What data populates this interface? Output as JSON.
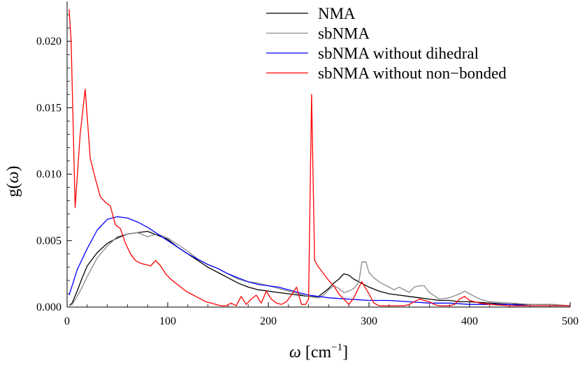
{
  "chart_data": {
    "type": "line",
    "title": "",
    "xlabel": "ω [cm⁻¹]",
    "xlabel_parts": {
      "symbol": "ω",
      "unit_open": "[cm",
      "exponent": "−1",
      "unit_close": "]"
    },
    "ylabel": "g(ω)",
    "ylabel_parts": {
      "prefix": "g(",
      "symbol": "ω",
      "suffix": ")"
    },
    "xlim": [
      0,
      500
    ],
    "ylim": [
      0,
      0.023
    ],
    "xticks": [
      0,
      100,
      200,
      300,
      400,
      500
    ],
    "xtick_labels": [
      "0",
      "100",
      "200",
      "300",
      "400",
      "500"
    ],
    "yticks": [
      0,
      0.005,
      0.01,
      0.015,
      0.02
    ],
    "ytick_labels": [
      "0.000",
      "0.005",
      "0.010",
      "0.015",
      "0.020"
    ],
    "grid": false,
    "legend_position": "top-right",
    "series": [
      {
        "name": "NMA",
        "color": "#000000",
        "x": [
          2,
          5,
          10,
          15,
          20,
          30,
          40,
          50,
          60,
          70,
          80,
          90,
          100,
          110,
          120,
          130,
          140,
          150,
          160,
          170,
          180,
          190,
          200,
          210,
          220,
          230,
          240,
          250,
          255,
          260,
          265,
          270,
          275,
          280,
          285,
          290,
          295,
          300,
          310,
          320,
          330,
          340,
          350,
          360,
          370,
          380,
          390,
          400,
          420,
          440,
          460,
          480,
          500
        ],
        "y": [
          0.0001,
          0.0003,
          0.0012,
          0.0022,
          0.0031,
          0.0041,
          0.0048,
          0.0052,
          0.0055,
          0.0056,
          0.0057,
          0.0054,
          0.0051,
          0.0045,
          0.004,
          0.0035,
          0.003,
          0.0026,
          0.0022,
          0.0018,
          0.0015,
          0.0013,
          0.0012,
          0.0011,
          0.001,
          0.0009,
          0.0008,
          0.0008,
          0.0011,
          0.0014,
          0.0018,
          0.0021,
          0.0025,
          0.0024,
          0.0021,
          0.0019,
          0.0017,
          0.0015,
          0.0012,
          0.001,
          0.0009,
          0.0008,
          0.0007,
          0.0006,
          0.0005,
          0.0005,
          0.0004,
          0.0004,
          0.0003,
          0.0002,
          0.0002,
          0.0002,
          0.0001
        ]
      },
      {
        "name": "sbNMA",
        "color": "#888888",
        "x": [
          2,
          5,
          10,
          15,
          20,
          30,
          40,
          50,
          60,
          70,
          80,
          90,
          100,
          110,
          120,
          130,
          140,
          150,
          160,
          170,
          180,
          190,
          200,
          210,
          220,
          230,
          240,
          250,
          255,
          260,
          265,
          270,
          275,
          280,
          285,
          290,
          293,
          297,
          300,
          305,
          310,
          320,
          325,
          330,
          340,
          345,
          350,
          355,
          360,
          370,
          380,
          390,
          395,
          400,
          410,
          420,
          440,
          460,
          480,
          500
        ],
        "y": [
          0.0001,
          0.0002,
          0.0008,
          0.0015,
          0.0023,
          0.0037,
          0.0046,
          0.0053,
          0.0055,
          0.0056,
          0.0053,
          0.0055,
          0.0052,
          0.0047,
          0.0042,
          0.0036,
          0.0032,
          0.0029,
          0.0025,
          0.0021,
          0.0019,
          0.0018,
          0.0016,
          0.0014,
          0.0012,
          0.001,
          0.0008,
          0.0007,
          0.0009,
          0.0013,
          0.0016,
          0.0014,
          0.0011,
          0.0012,
          0.0014,
          0.0019,
          0.0034,
          0.0034,
          0.0026,
          0.0022,
          0.0019,
          0.0015,
          0.0013,
          0.0015,
          0.0011,
          0.0015,
          0.0016,
          0.0016,
          0.0011,
          0.0006,
          0.0007,
          0.001,
          0.0012,
          0.001,
          0.0006,
          0.0004,
          0.0003,
          0.0002,
          0.0002,
          0.0001
        ]
      },
      {
        "name": "sbNMA without dihedral",
        "color": "#0000ff",
        "x": [
          2,
          10,
          20,
          30,
          40,
          50,
          60,
          70,
          80,
          90,
          100,
          110,
          120,
          130,
          140,
          150,
          160,
          170,
          180,
          190,
          200,
          210,
          220,
          230,
          240,
          250,
          260,
          280,
          300,
          320,
          340,
          360,
          380,
          400,
          420,
          440,
          460,
          480,
          500
        ],
        "y": [
          0.0009,
          0.0028,
          0.0044,
          0.0058,
          0.0066,
          0.0068,
          0.0067,
          0.0064,
          0.006,
          0.0055,
          0.005,
          0.0045,
          0.004,
          0.0036,
          0.0032,
          0.0029,
          0.0025,
          0.0022,
          0.0019,
          0.0017,
          0.0016,
          0.0015,
          0.0013,
          0.0011,
          0.0009,
          0.0008,
          0.0007,
          0.0006,
          0.0005,
          0.0005,
          0.0004,
          0.0003,
          0.0003,
          0.0002,
          0.0002,
          0.0002,
          0.0001,
          0.0001,
          0.0001
        ]
      },
      {
        "name": "sbNMA without non−bonded",
        "color": "#ff0000",
        "x": [
          2,
          4,
          8,
          13,
          18,
          23,
          28,
          33,
          38,
          43,
          48,
          53,
          58,
          63,
          68,
          73,
          78,
          83,
          88,
          93,
          98,
          103,
          108,
          113,
          118,
          123,
          128,
          133,
          138,
          143,
          148,
          153,
          158,
          163,
          168,
          173,
          178,
          183,
          188,
          193,
          198,
          203,
          208,
          213,
          218,
          223,
          228,
          233,
          237,
          240,
          243,
          246,
          250,
          255,
          260,
          265,
          270,
          275,
          280,
          285,
          290,
          293,
          296,
          300,
          305,
          310,
          315,
          320,
          325,
          330,
          335,
          340,
          345,
          350,
          355,
          360,
          365,
          370,
          375,
          380,
          385,
          390,
          395,
          400,
          410,
          420,
          440,
          460,
          480,
          500
        ],
        "y": [
          0.0224,
          0.02,
          0.0075,
          0.013,
          0.0164,
          0.0112,
          0.0097,
          0.0083,
          0.0079,
          0.0076,
          0.0062,
          0.0059,
          0.0048,
          0.004,
          0.0035,
          0.0033,
          0.0032,
          0.0031,
          0.0035,
          0.0031,
          0.0025,
          0.0021,
          0.0018,
          0.0015,
          0.0012,
          0.001,
          0.0008,
          0.0006,
          0.0004,
          0.0003,
          0.0002,
          0.0001,
          0.0001,
          0.0003,
          0.0001,
          0.0008,
          0.0002,
          0.0006,
          0.0009,
          0.0003,
          0.0012,
          0.0006,
          0.0003,
          0.0002,
          0.0004,
          0.0009,
          0.0015,
          0.0002,
          0.0002,
          0.0006,
          0.016,
          0.0035,
          0.003,
          0.0025,
          0.002,
          0.0016,
          0.001,
          0.0006,
          0.0002,
          0.0007,
          0.0015,
          0.0019,
          0.0015,
          0.001,
          0.0003,
          0.0001,
          0.0001,
          0.0001,
          0.0001,
          0.0001,
          0.0001,
          0.0002,
          0.0004,
          0.0006,
          0.0005,
          0.0004,
          0.0002,
          0.0001,
          0.0001,
          0.0001,
          0.0002,
          0.0006,
          0.0008,
          0.0005,
          0.0003,
          0.0002,
          0.0001,
          0.0001,
          0.0001,
          0.0001
        ]
      }
    ]
  }
}
